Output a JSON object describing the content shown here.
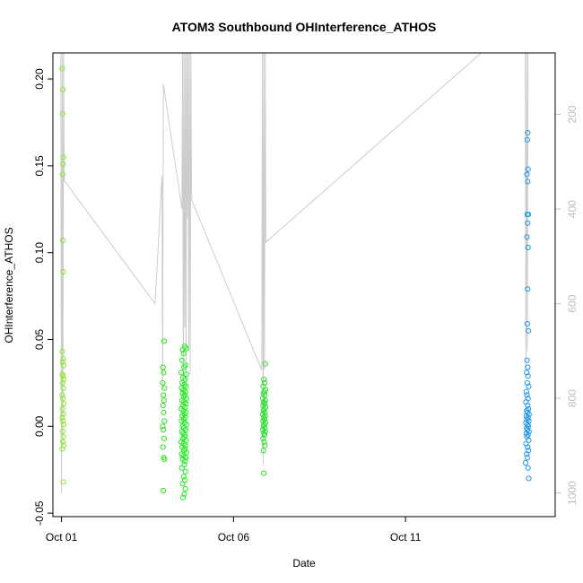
{
  "chart_data": {
    "type": "scatter",
    "title": "ATOM3 Southbound OHInterference_ATHOS",
    "xlabel": "Date",
    "ylabel": "OHInterference_ATHOS",
    "x_ticks": [
      "Oct 01",
      "Oct 06",
      "Oct 11"
    ],
    "x_tick_days": [
      1,
      6,
      11
    ],
    "xlim_days": [
      0.75,
      15.35
    ],
    "y_ticks": [
      -0.05,
      0.0,
      0.05,
      0.1,
      0.15,
      0.2
    ],
    "y_tick_labels": [
      "-0.05",
      "0.00",
      "0.05",
      "0.10",
      "0.15",
      "0.20"
    ],
    "ylim": [
      -0.052,
      0.215
    ],
    "right_axis": {
      "label": "",
      "ticks": [
        200,
        400,
        600,
        800,
        1000
      ],
      "tick_labels": [
        "200",
        "400",
        "600",
        "800",
        "1000"
      ],
      "reversed": true,
      "lim": [
        70,
        1050
      ],
      "color": "#bdbdbd"
    },
    "grid": false,
    "series": [
      {
        "color": "#8ee830",
        "points": [
          [
            1.02,
            0.206
          ],
          [
            1.04,
            0.194
          ],
          [
            1.03,
            0.18
          ],
          [
            1.05,
            0.155
          ],
          [
            1.04,
            0.151
          ],
          [
            1.03,
            0.145
          ],
          [
            1.04,
            0.107
          ],
          [
            1.05,
            0.089
          ],
          [
            1.02,
            0.043
          ],
          [
            1.05,
            0.039
          ],
          [
            1.03,
            0.037
          ],
          [
            1.06,
            0.035
          ],
          [
            1.02,
            0.03
          ],
          [
            1.04,
            0.029
          ],
          [
            1.06,
            0.027
          ],
          [
            1.03,
            0.025
          ],
          [
            1.05,
            0.022
          ],
          [
            1.02,
            0.018
          ],
          [
            1.04,
            0.016
          ],
          [
            1.06,
            0.013
          ],
          [
            1.03,
            0.01
          ],
          [
            1.05,
            0.007
          ],
          [
            1.02,
            0.005
          ],
          [
            1.04,
            0.003
          ],
          [
            1.06,
            0.001
          ],
          [
            1.03,
            -0.003
          ],
          [
            1.05,
            -0.006
          ],
          [
            1.04,
            -0.009
          ],
          [
            1.06,
            -0.011
          ],
          [
            1.02,
            -0.013
          ],
          [
            1.05,
            -0.032
          ]
        ]
      },
      {
        "color": "#33dd22",
        "points": [
          [
            3.98,
            0.049
          ],
          [
            3.95,
            0.034
          ],
          [
            3.97,
            0.031
          ],
          [
            3.94,
            0.025
          ],
          [
            3.99,
            0.022
          ],
          [
            3.96,
            0.018
          ],
          [
            3.98,
            0.015
          ],
          [
            3.95,
            0.012
          ],
          [
            3.97,
            0.008
          ],
          [
            3.99,
            0.003
          ],
          [
            3.94,
            0.0
          ],
          [
            3.96,
            -0.002
          ],
          [
            3.98,
            -0.007
          ],
          [
            3.95,
            -0.012
          ],
          [
            3.97,
            -0.018
          ],
          [
            3.99,
            -0.019
          ],
          [
            3.96,
            -0.037
          ]
        ]
      },
      {
        "color": "#22ee22",
        "points": [
          [
            4.52,
            0.044
          ],
          [
            4.58,
            0.046
          ],
          [
            4.55,
            0.042
          ],
          [
            4.62,
            0.045
          ],
          [
            4.5,
            0.038
          ],
          [
            4.6,
            0.035
          ],
          [
            4.56,
            0.034
          ],
          [
            4.48,
            0.031
          ],
          [
            4.63,
            0.03
          ],
          [
            4.53,
            0.028
          ],
          [
            4.59,
            0.027
          ],
          [
            4.51,
            0.025
          ],
          [
            4.57,
            0.024
          ],
          [
            4.62,
            0.023
          ],
          [
            4.49,
            0.022
          ],
          [
            4.54,
            0.021
          ],
          [
            4.6,
            0.02
          ],
          [
            4.52,
            0.019
          ],
          [
            4.58,
            0.018
          ],
          [
            4.55,
            0.017
          ],
          [
            4.63,
            0.016
          ],
          [
            4.5,
            0.015
          ],
          [
            4.56,
            0.014
          ],
          [
            4.61,
            0.013
          ],
          [
            4.53,
            0.012
          ],
          [
            4.59,
            0.011
          ],
          [
            4.48,
            0.01
          ],
          [
            4.54,
            0.009
          ],
          [
            4.62,
            0.008
          ],
          [
            4.57,
            0.007
          ],
          [
            4.51,
            0.006
          ],
          [
            4.6,
            0.005
          ],
          [
            4.55,
            0.004
          ],
          [
            4.49,
            0.003
          ],
          [
            4.58,
            0.002
          ],
          [
            4.63,
            0.001
          ],
          [
            4.52,
            0.0
          ],
          [
            4.56,
            -0.001
          ],
          [
            4.61,
            -0.002
          ],
          [
            4.5,
            -0.003
          ],
          [
            4.54,
            -0.004
          ],
          [
            4.59,
            -0.005
          ],
          [
            4.57,
            -0.006
          ],
          [
            4.53,
            -0.007
          ],
          [
            4.62,
            -0.008
          ],
          [
            4.48,
            -0.009
          ],
          [
            4.55,
            -0.01
          ],
          [
            4.6,
            -0.011
          ],
          [
            4.51,
            -0.012
          ],
          [
            4.58,
            -0.013
          ],
          [
            4.56,
            -0.014
          ],
          [
            4.63,
            -0.015
          ],
          [
            4.49,
            -0.016
          ],
          [
            4.54,
            -0.017
          ],
          [
            4.61,
            -0.018
          ],
          [
            4.52,
            -0.019
          ],
          [
            4.59,
            -0.02
          ],
          [
            4.57,
            -0.022
          ],
          [
            4.5,
            -0.024
          ],
          [
            4.6,
            -0.026
          ],
          [
            4.55,
            -0.029
          ],
          [
            4.58,
            -0.031
          ],
          [
            4.52,
            -0.033
          ],
          [
            4.6,
            -0.036
          ],
          [
            4.53,
            -0.041
          ],
          [
            4.57,
            -0.039
          ]
        ]
      },
      {
        "color": "#33dd33",
        "points": [
          [
            6.92,
            0.036
          ],
          [
            6.88,
            0.027
          ],
          [
            6.9,
            0.025
          ],
          [
            6.86,
            0.023
          ],
          [
            6.93,
            0.021
          ],
          [
            6.89,
            0.02
          ],
          [
            6.87,
            0.019
          ],
          [
            6.91,
            0.018
          ],
          [
            6.85,
            0.016
          ],
          [
            6.92,
            0.015
          ],
          [
            6.88,
            0.014
          ],
          [
            6.9,
            0.013
          ],
          [
            6.86,
            0.012
          ],
          [
            6.93,
            0.011
          ],
          [
            6.89,
            0.01
          ],
          [
            6.87,
            0.009
          ],
          [
            6.91,
            0.008
          ],
          [
            6.85,
            0.007
          ],
          [
            6.92,
            0.006
          ],
          [
            6.88,
            0.005
          ],
          [
            6.9,
            0.004
          ],
          [
            6.86,
            0.003
          ],
          [
            6.93,
            0.002
          ],
          [
            6.89,
            0.001
          ],
          [
            6.87,
            0.0
          ],
          [
            6.91,
            -0.001
          ],
          [
            6.85,
            -0.002
          ],
          [
            6.92,
            -0.003
          ],
          [
            6.88,
            -0.004
          ],
          [
            6.9,
            -0.005
          ],
          [
            6.86,
            -0.007
          ],
          [
            6.89,
            -0.009
          ],
          [
            6.91,
            -0.011
          ],
          [
            6.87,
            -0.014
          ],
          [
            6.88,
            -0.027
          ]
        ]
      },
      {
        "color": "#2299ee",
        "points": [
          [
            14.55,
            0.169
          ],
          [
            14.54,
            0.165
          ],
          [
            14.56,
            0.148
          ],
          [
            14.53,
            0.145
          ],
          [
            14.55,
            0.141
          ],
          [
            14.57,
            0.122
          ],
          [
            14.54,
            0.122
          ],
          [
            14.55,
            0.117
          ],
          [
            14.53,
            0.109
          ],
          [
            14.56,
            0.103
          ],
          [
            14.55,
            0.079
          ],
          [
            14.54,
            0.059
          ],
          [
            14.57,
            0.055
          ],
          [
            14.53,
            0.038
          ],
          [
            14.55,
            0.034
          ],
          [
            14.52,
            0.031
          ],
          [
            14.56,
            0.029
          ],
          [
            14.54,
            0.025
          ],
          [
            14.58,
            0.023
          ],
          [
            14.51,
            0.02
          ],
          [
            14.53,
            0.018
          ],
          [
            14.56,
            0.016
          ],
          [
            14.5,
            0.014
          ],
          [
            14.55,
            0.012
          ],
          [
            14.57,
            0.01
          ],
          [
            14.52,
            0.009
          ],
          [
            14.54,
            0.008
          ],
          [
            14.59,
            0.007
          ],
          [
            14.51,
            0.006
          ],
          [
            14.56,
            0.005
          ],
          [
            14.53,
            0.004
          ],
          [
            14.58,
            0.003
          ],
          [
            14.5,
            0.002
          ],
          [
            14.55,
            0.001
          ],
          [
            14.57,
            0.0
          ],
          [
            14.52,
            -0.001
          ],
          [
            14.54,
            -0.002
          ],
          [
            14.59,
            -0.003
          ],
          [
            14.51,
            -0.004
          ],
          [
            14.56,
            -0.005
          ],
          [
            14.53,
            -0.006
          ],
          [
            14.58,
            -0.008
          ],
          [
            14.5,
            -0.01
          ],
          [
            14.55,
            -0.012
          ],
          [
            14.57,
            -0.014
          ],
          [
            14.52,
            -0.016
          ],
          [
            14.54,
            -0.018
          ],
          [
            14.49,
            -0.021
          ],
          [
            14.56,
            -0.024
          ],
          [
            14.58,
            -0.03
          ]
        ]
      }
    ],
    "altitude_trace": {
      "color": "#cccccc",
      "points": [
        [
          0.98,
          70
        ],
        [
          1.0,
          1000
        ],
        [
          1.02,
          70
        ],
        [
          1.04,
          900
        ],
        [
          1.06,
          70
        ],
        [
          1.08,
          340
        ],
        [
          3.72,
          600
        ],
        [
          3.92,
          330
        ],
        [
          3.94,
          780
        ],
        [
          3.96,
          135
        ],
        [
          4.5,
          400
        ],
        [
          4.52,
          70
        ],
        [
          4.54,
          850
        ],
        [
          4.56,
          70
        ],
        [
          4.58,
          650
        ],
        [
          4.6,
          70
        ],
        [
          4.62,
          800
        ],
        [
          4.64,
          70
        ],
        [
          4.66,
          420
        ],
        [
          4.68,
          70
        ],
        [
          4.7,
          700
        ],
        [
          4.72,
          70
        ],
        [
          4.74,
          750
        ],
        [
          4.76,
          70
        ],
        [
          4.78,
          380
        ],
        [
          6.82,
          740
        ],
        [
          6.84,
          70
        ],
        [
          6.86,
          940
        ],
        [
          6.88,
          70
        ],
        [
          6.9,
          740
        ],
        [
          6.92,
          70
        ],
        [
          6.94,
          470
        ],
        [
          13.2,
          70
        ],
        [
          13.4,
          70
        ],
        [
          14.48,
          70
        ],
        [
          14.5,
          740
        ],
        [
          14.52,
          70
        ],
        [
          14.54,
          700
        ],
        [
          14.56,
          70
        ]
      ]
    }
  }
}
